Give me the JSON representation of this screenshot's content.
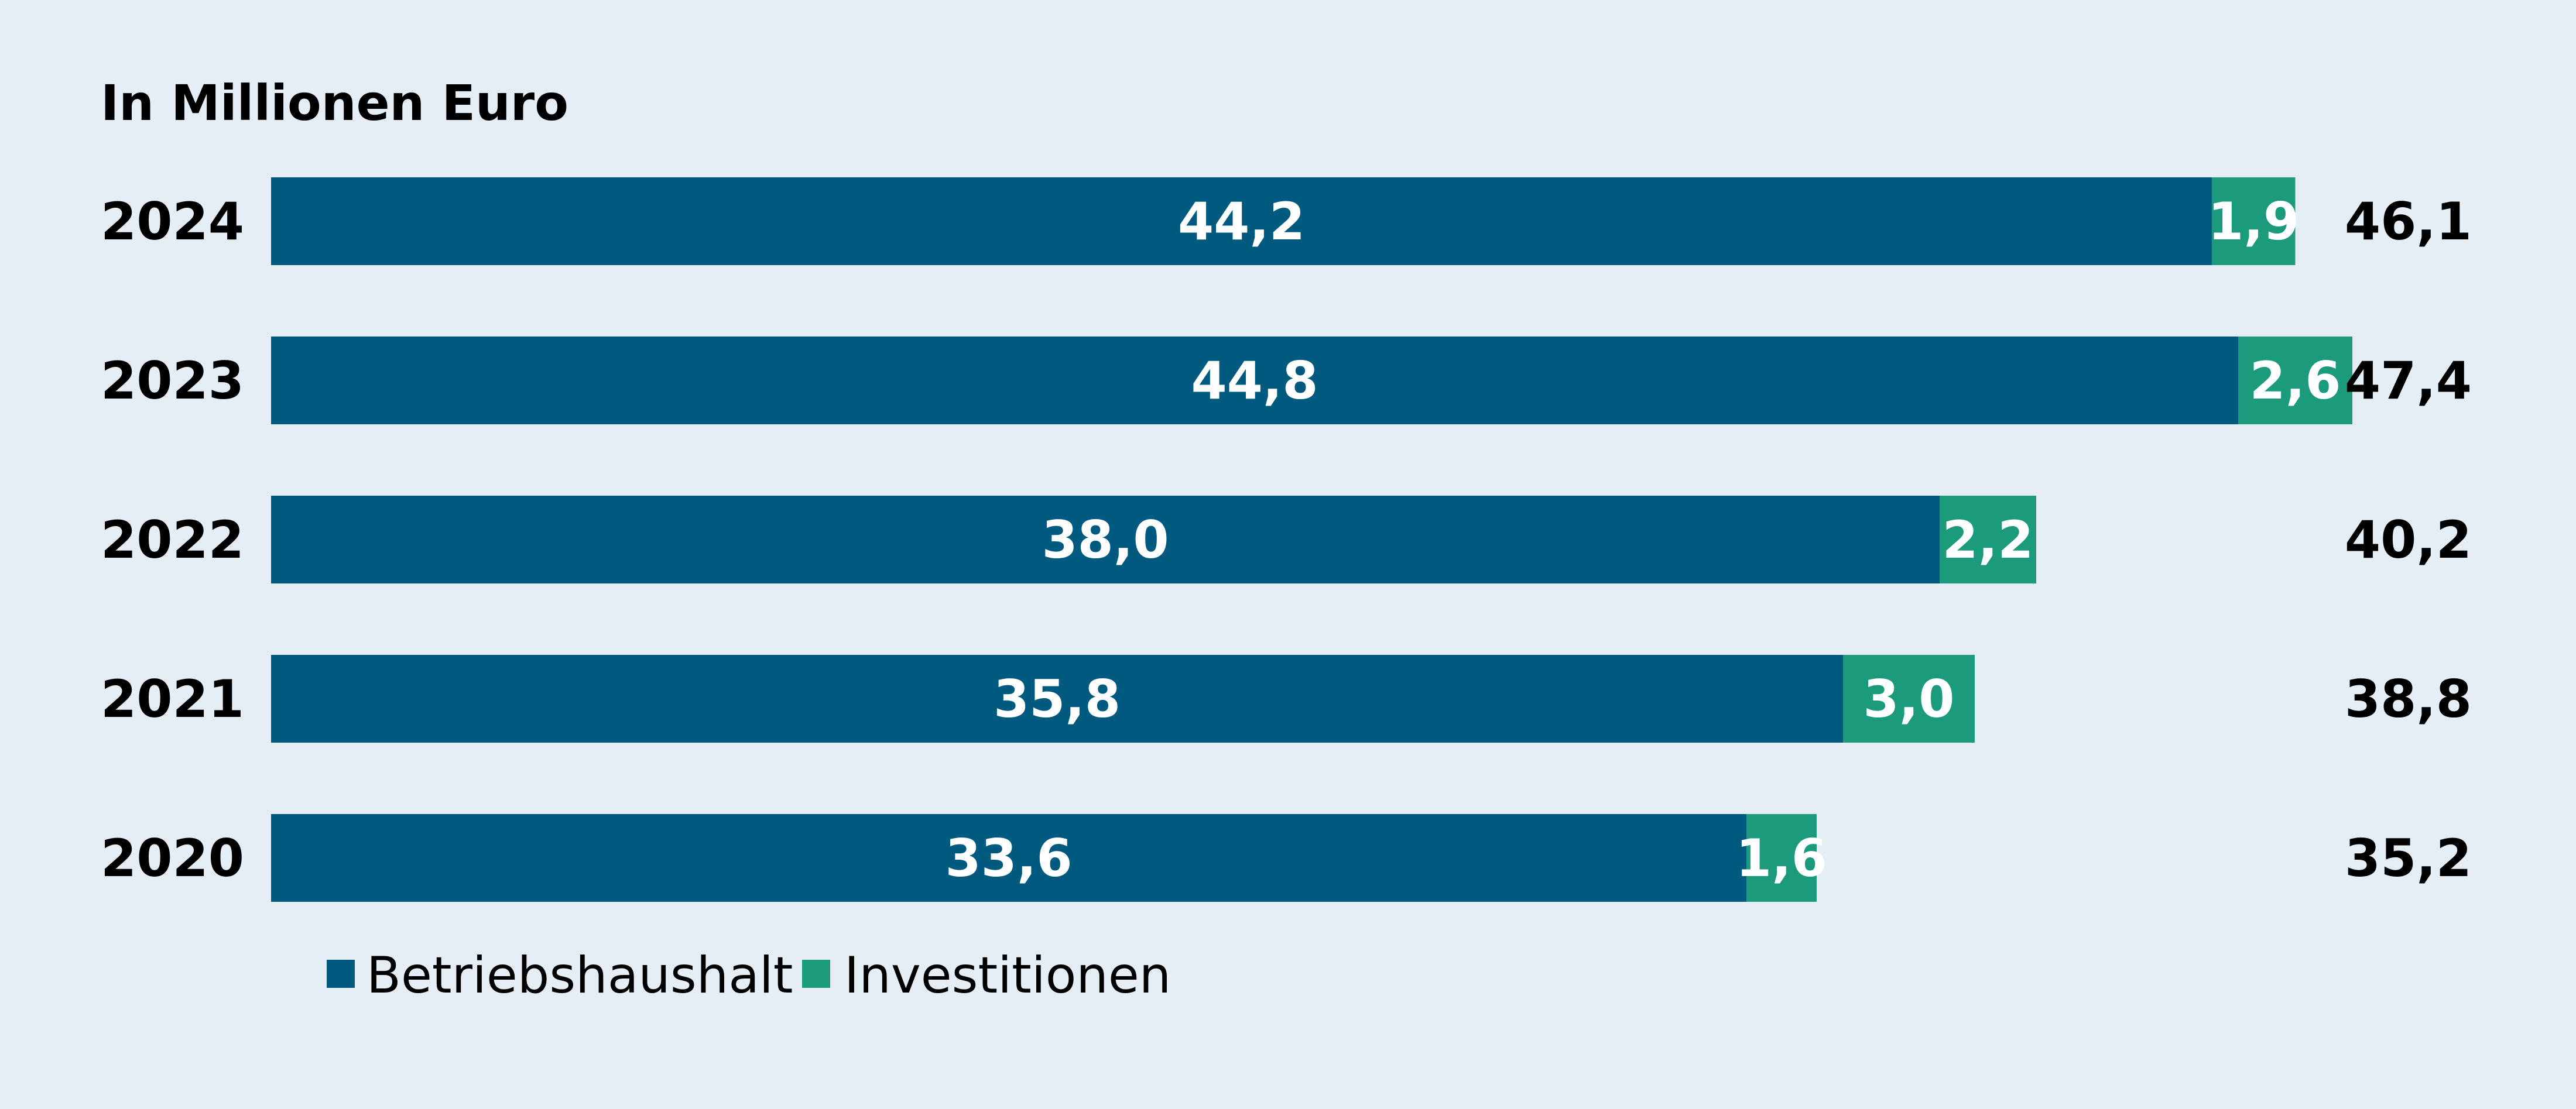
{
  "chart_data": {
    "type": "bar",
    "orientation": "horizontal",
    "stacked": true,
    "title": "In Millionen Euro",
    "categories": [
      "2024",
      "2023",
      "2022",
      "2021",
      "2020"
    ],
    "series": [
      {
        "name": "Betriebshaushalt",
        "color": "#005a7f",
        "values": [
          44.2,
          44.8,
          38.0,
          35.8,
          33.6
        ],
        "labels": [
          "44,2",
          "44,8",
          "38,0",
          "35,8",
          "33,6"
        ]
      },
      {
        "name": "Investitionen",
        "color": "#1b9a7c",
        "values": [
          1.9,
          2.6,
          2.2,
          3.0,
          1.6
        ],
        "labels": [
          "1,9",
          "2,6",
          "2,2",
          "3,0",
          "1,6"
        ]
      }
    ],
    "totals": [
      "46,1",
      "47,4",
      "40,2",
      "38,8",
      "35,2"
    ],
    "xlim": [
      0,
      47.4
    ],
    "grid": false,
    "legend": "bottom-left"
  }
}
